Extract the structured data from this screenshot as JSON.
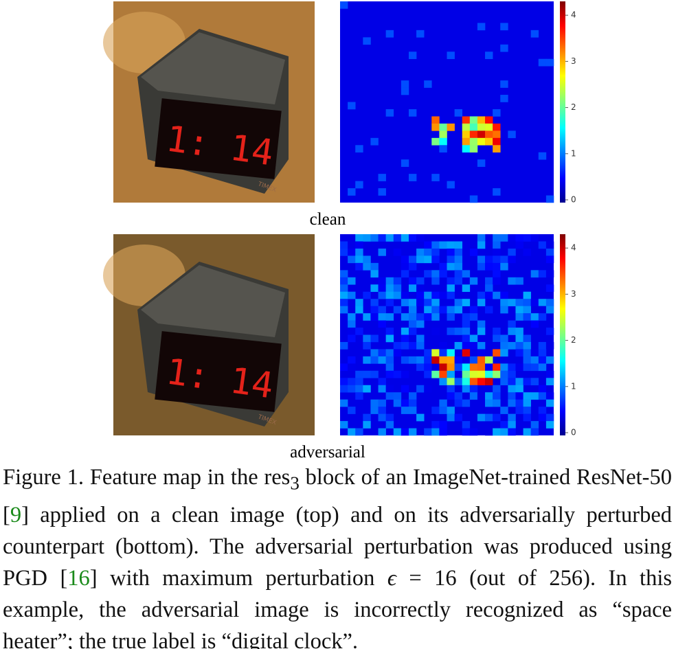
{
  "figure": {
    "panels": [
      {
        "label": "clean",
        "clock_display": "1: 14",
        "brand": "TIMEX"
      },
      {
        "label": "adversarial",
        "clock_display": "1: 14",
        "brand": "TIMEX"
      }
    ],
    "colorbar": {
      "lim": [
        0,
        4.3
      ],
      "ticks": [
        0,
        1,
        2,
        3,
        4
      ]
    },
    "caption": {
      "lead": "Figure 1. Feature map in the res",
      "sub": "3",
      "text1": " block of an ImageNet-trained ResNet-50 [",
      "ref1": "9",
      "text2": "] applied on a clean image (top) and on its adversarially perturbed counterpart (bottom). The adversarial perturbation was produced using PGD [",
      "ref2": "16",
      "text3": "] with maximum perturbation ",
      "eps": "ϵ",
      "text4": " = 16 (out of 256). In this example, the adversarial image is incorrectly recognized as “space heater”; the true label is “digital clock”."
    }
  }
}
